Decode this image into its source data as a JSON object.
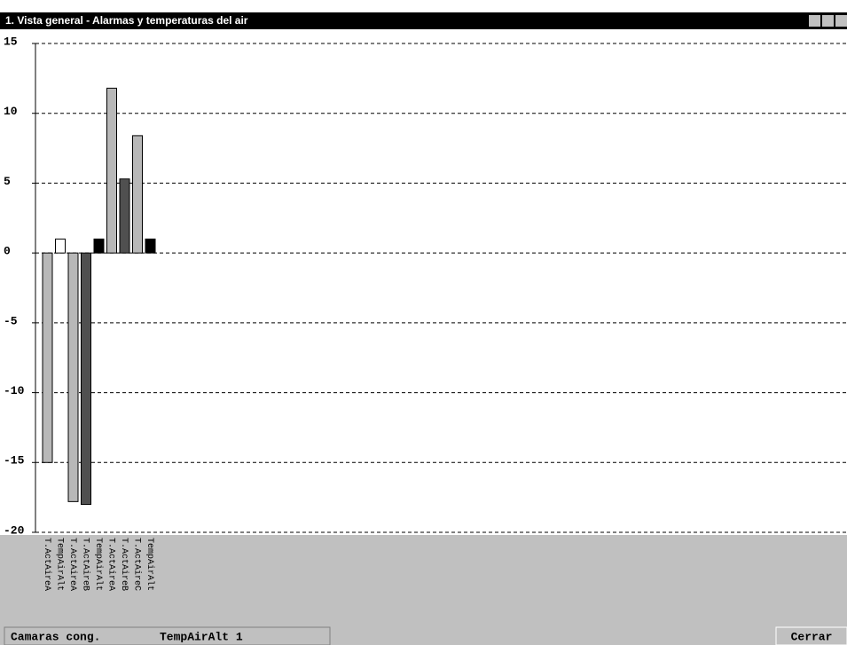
{
  "window": {
    "title": "1. Vista general  -  Alarmas y temperaturas del air"
  },
  "chart_data": {
    "type": "bar",
    "categories": [
      "T.ActAireA",
      "TempAirAlt",
      "T.ActAireA",
      "T.ActAireB",
      "TempAirAlt",
      "T.ActAireA",
      "T.ActAireB",
      "T.ActAireC",
      "TempAirAlt"
    ],
    "values": [
      -15,
      1,
      -17.8,
      -18,
      1,
      11.8,
      5.3,
      8.4,
      1
    ],
    "colors": [
      "#b8b8b8",
      "#ffffff",
      "#b8b8b8",
      "#505050",
      "#000000",
      "#b8b8b8",
      "#505050",
      "#b8b8b8",
      "#000000"
    ],
    "ylim": [
      -20,
      15
    ],
    "yticks": [
      -20,
      -15,
      -10,
      -5,
      0,
      5,
      10,
      15
    ],
    "grid": true
  },
  "status": {
    "group": "Camaras cong.",
    "item": "TempAirAlt 1"
  },
  "button": "Cerrar"
}
